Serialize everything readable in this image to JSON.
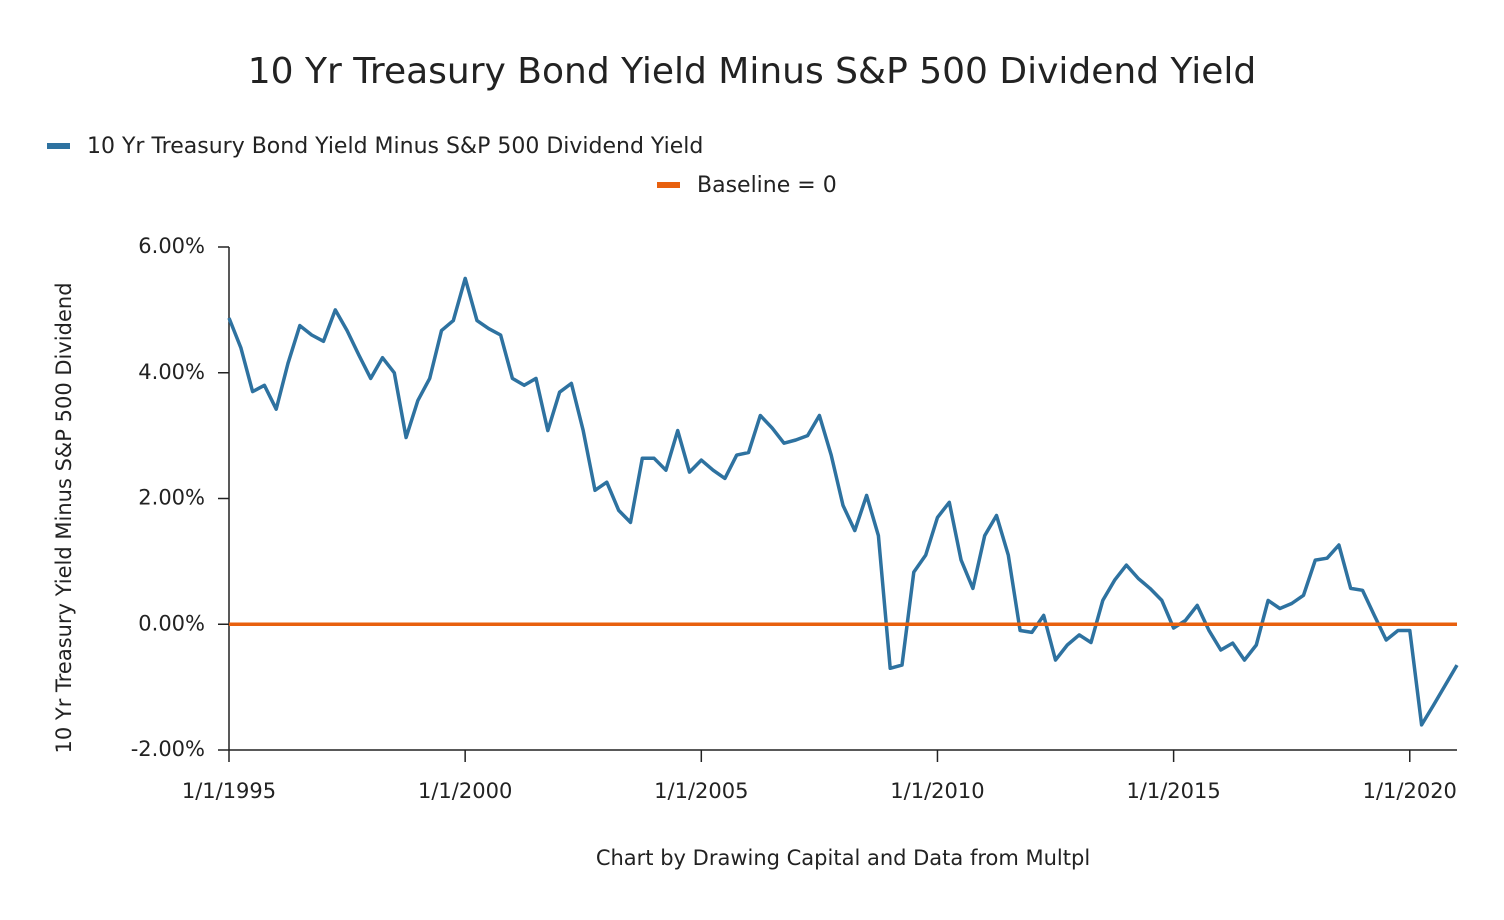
{
  "chart_data": {
    "type": "line",
    "title": "10 Yr Treasury Bond Yield Minus S&P 500 Dividend Yield",
    "y_label": "10 Yr Treasury Yield Minus S&P 500 Dividend",
    "note": "Chart by Drawing Capital and Data from Multpl",
    "x": [
      1995,
      1995.25,
      1995.5,
      1995.75,
      1996,
      1996.25,
      1996.5,
      1996.75,
      1997,
      1997.25,
      1997.5,
      1997.75,
      1998,
      1998.25,
      1998.5,
      1998.75,
      1999,
      1999.25,
      1999.5,
      1999.75,
      2000,
      2000.25,
      2000.5,
      2000.75,
      2001,
      2001.25,
      2001.5,
      2001.75,
      2002,
      2002.25,
      2002.5,
      2002.75,
      2003,
      2003.25,
      2003.5,
      2003.75,
      2004,
      2004.25,
      2004.5,
      2004.75,
      2005,
      2005.25,
      2005.5,
      2005.75,
      2006,
      2006.25,
      2006.5,
      2006.75,
      2007,
      2007.25,
      2007.5,
      2007.75,
      2008,
      2008.25,
      2008.5,
      2008.75,
      2009,
      2009.25,
      2009.5,
      2009.75,
      2010,
      2010.25,
      2010.5,
      2010.75,
      2011,
      2011.25,
      2011.5,
      2011.75,
      2012,
      2012.25,
      2012.5,
      2012.75,
      2013,
      2013.25,
      2013.5,
      2013.75,
      2014,
      2014.25,
      2014.5,
      2014.75,
      2015,
      2015.25,
      2015.5,
      2015.75,
      2016,
      2016.25,
      2016.5,
      2016.75,
      2017,
      2017.25,
      2017.5,
      2017.75,
      2018,
      2018.25,
      2018.5,
      2018.75,
      2019,
      2019.25,
      2019.5,
      2019.75,
      2020,
      2020.25,
      2020.5,
      2020.75,
      2021
    ],
    "series": [
      {
        "name": "10 Yr Treasury Bond Yield Minus S&P 500 Dividend Yield",
        "color": "#2e72a0",
        "values": [
          4.87,
          4.4,
          3.7,
          3.8,
          3.42,
          4.15,
          4.75,
          4.6,
          4.5,
          5.0,
          4.67,
          4.28,
          3.91,
          4.24,
          4.0,
          2.97,
          3.56,
          3.91,
          4.67,
          4.83,
          5.5,
          4.83,
          4.7,
          4.6,
          3.91,
          3.8,
          3.91,
          3.08,
          3.69,
          3.83,
          3.08,
          2.13,
          2.26,
          1.81,
          1.62,
          2.64,
          2.64,
          2.45,
          3.08,
          2.42,
          2.61,
          2.45,
          2.32,
          2.69,
          2.73,
          3.32,
          3.12,
          2.88,
          2.93,
          3.0,
          3.32,
          2.69,
          1.89,
          1.49,
          2.05,
          1.41,
          -0.7,
          -0.65,
          0.83,
          1.1,
          1.7,
          1.94,
          1.02,
          0.57,
          1.41,
          1.73,
          1.1,
          -0.1,
          -0.13,
          0.14,
          -0.57,
          -0.33,
          -0.17,
          -0.29,
          0.38,
          0.7,
          0.94,
          0.73,
          0.57,
          0.38,
          -0.06,
          0.06,
          0.3,
          -0.1,
          -0.41,
          -0.3,
          -0.57,
          -0.33,
          0.38,
          0.25,
          0.33,
          0.46,
          1.02,
          1.05,
          1.26,
          0.57,
          0.54,
          0.14,
          -0.25,
          -0.1,
          -0.1,
          -1.6,
          -1.29,
          -0.97,
          -0.65
        ]
      },
      {
        "name": "Baseline = 0",
        "color": "#e8600e",
        "values": [
          0,
          0,
          0,
          0,
          0,
          0,
          0,
          0,
          0,
          0,
          0,
          0,
          0,
          0,
          0,
          0,
          0,
          0,
          0,
          0,
          0,
          0,
          0,
          0,
          0,
          0,
          0,
          0,
          0,
          0,
          0,
          0,
          0,
          0,
          0,
          0,
          0,
          0,
          0,
          0,
          0,
          0,
          0,
          0,
          0,
          0,
          0,
          0,
          0,
          0,
          0,
          0,
          0,
          0,
          0,
          0,
          0,
          0,
          0,
          0,
          0,
          0,
          0,
          0,
          0,
          0,
          0,
          0,
          0,
          0,
          0,
          0,
          0,
          0,
          0,
          0,
          0,
          0,
          0,
          0,
          0,
          0,
          0,
          0,
          0,
          0,
          0,
          0,
          0,
          0,
          0,
          0,
          0,
          0,
          0,
          0,
          0,
          0,
          0,
          0,
          0,
          0,
          0,
          0,
          0
        ]
      }
    ],
    "xlim": [
      1995,
      2021
    ],
    "xticks": [
      {
        "value": 1995,
        "label": "1/1/1995"
      },
      {
        "value": 2000,
        "label": "1/1/2000"
      },
      {
        "value": 2005,
        "label": "1/1/2005"
      },
      {
        "value": 2010,
        "label": "1/1/2010"
      },
      {
        "value": 2015,
        "label": "1/1/2015"
      },
      {
        "value": 2020,
        "label": "1/1/2020"
      }
    ],
    "ylim": [
      -2,
      6
    ],
    "yticks": [
      {
        "value": -2,
        "label": "-2.00%"
      },
      {
        "value": 0,
        "label": "0.00%"
      },
      {
        "value": 2,
        "label": "2.00%"
      },
      {
        "value": 4,
        "label": "4.00%"
      },
      {
        "value": 6,
        "label": "6.00%"
      }
    ]
  }
}
